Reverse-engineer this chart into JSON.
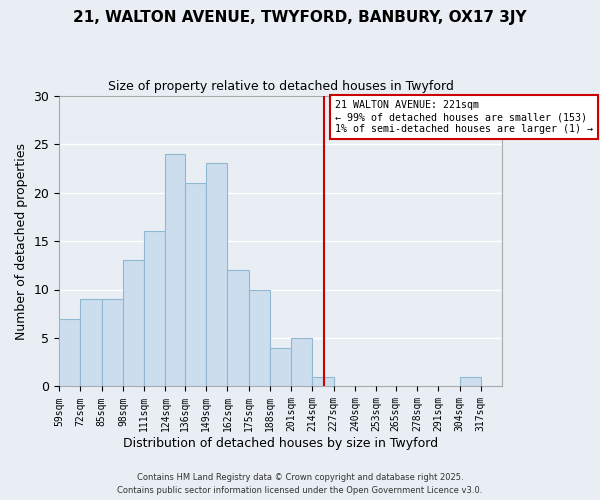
{
  "title1": "21, WALTON AVENUE, TWYFORD, BANBURY, OX17 3JY",
  "title2": "Size of property relative to detached houses in Twyford",
  "xlabel": "Distribution of detached houses by size in Twyford",
  "ylabel": "Number of detached properties",
  "bin_labels": [
    "59sqm",
    "72sqm",
    "85sqm",
    "98sqm",
    "111sqm",
    "124sqm",
    "136sqm",
    "149sqm",
    "162sqm",
    "175sqm",
    "188sqm",
    "201sqm",
    "214sqm",
    "227sqm",
    "240sqm",
    "253sqm",
    "265sqm",
    "278sqm",
    "291sqm",
    "304sqm",
    "317sqm"
  ],
  "bin_edges": [
    59,
    72,
    85,
    98,
    111,
    124,
    136,
    149,
    162,
    175,
    188,
    201,
    214,
    227,
    240,
    253,
    265,
    278,
    291,
    304,
    317,
    330
  ],
  "counts": [
    7,
    9,
    9,
    13,
    16,
    24,
    21,
    23,
    12,
    10,
    4,
    5,
    1,
    0,
    0,
    0,
    0,
    0,
    0,
    1,
    0
  ],
  "bar_color": "#ccdded",
  "bar_edge_color": "#90b8d0",
  "vline_x": 221,
  "vline_color": "#cc0000",
  "annotation_line1": "21 WALTON AVENUE: 221sqm",
  "annotation_line2": "← 99% of detached houses are smaller (153)",
  "annotation_line3": "1% of semi-detached houses are larger (1) →",
  "annotation_box_color": "white",
  "annotation_box_edge_color": "#cc0000",
  "ylim": [
    0,
    30
  ],
  "xlim": [
    59,
    330
  ],
  "background_color": "#e8eef4",
  "plot_bg_color": "#e8eef4",
  "grid_color": "white",
  "footer1": "Contains HM Land Registry data © Crown copyright and database right 2025.",
  "footer2": "Contains public sector information licensed under the Open Government Licence v3.0.",
  "yticks": [
    0,
    5,
    10,
    15,
    20,
    25,
    30
  ]
}
